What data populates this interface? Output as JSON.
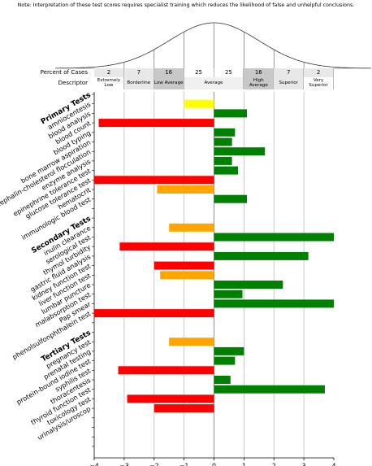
{
  "chart_data": {
    "type": "bar",
    "orientation": "horizontal",
    "note": "Note: Interpretation of these test scores requires specialist training which reduces the likelihood of false and unhelpful conclusions.",
    "percent_row_label": "Percent of Cases",
    "percent_of_cases": [
      2,
      7,
      16,
      25,
      25,
      16,
      7,
      2
    ],
    "descriptor_row_label": "Descriptor",
    "descriptors": [
      "Extremely Low",
      "Borderline",
      "Low Average",
      "Average",
      "High Average",
      "Superior",
      "Very Superior"
    ],
    "categories": [
      "Primary Tests",
      "amniocentesis",
      "blood analysis",
      "blood count",
      "blood typing",
      "bone marrow aspiration",
      "cephalin-cholesterol flocculation",
      "enzyme analysis",
      "epinephrine tolerance test",
      "glucose tolerance test",
      "hematocrit",
      "immunologic blood test",
      null,
      "Secondary Tests",
      "inulin clearance",
      "serological test",
      "thymol turbidity",
      "gastric fluid analysis",
      "kidney function test",
      "liver function test",
      "lumbar puncture",
      "malabsorption test",
      "Pap smear",
      "phenolsulfonphthalein test",
      null,
      "Tertiary Tests",
      "pregnancy test",
      "prenatal testing",
      "protein-bound iodine test",
      "syphilis test",
      "thoracentesis",
      "thyroid function test",
      "toxicology test",
      "urinalysis/uroscop",
      null,
      null,
      null,
      null
    ],
    "values": [
      null,
      -1,
      1.1,
      -3.85,
      0.7,
      0.6,
      1.7,
      0.6,
      0.8,
      -4,
      -1.9,
      1.1,
      null,
      null,
      -1.5,
      4,
      -3.15,
      3.15,
      -2,
      -1.8,
      2.3,
      0.95,
      4,
      -4,
      null,
      null,
      -1.5,
      1,
      0.7,
      -3.2,
      0.55,
      3.7,
      -2.9,
      -2,
      null,
      null,
      null,
      null
    ],
    "colors": [
      null,
      "#ffff00",
      "#008000",
      "#ff0000",
      "#008000",
      "#008000",
      "#008000",
      "#008000",
      "#008000",
      "#ff0000",
      "#ffa500",
      "#008000",
      null,
      null,
      "#ffa500",
      "#008000",
      "#ff0000",
      "#008000",
      "#ff0000",
      "#ffa500",
      "#008000",
      "#008000",
      "#008000",
      "#ff0000",
      null,
      null,
      "#ffa500",
      "#008000",
      "#008000",
      "#ff0000",
      "#008000",
      "#008000",
      "#ff0000",
      "#ff0000",
      null,
      null,
      null,
      null
    ],
    "xlim": [
      -4,
      4
    ],
    "xticks": [
      {
        "value": -4,
        "label": "−4"
      },
      {
        "value": -3,
        "label": "−3"
      },
      {
        "value": -2,
        "label": "−2"
      },
      {
        "value": -1,
        "label": "−1"
      },
      0,
      1,
      2,
      3,
      4
    ],
    "grid": true
  }
}
